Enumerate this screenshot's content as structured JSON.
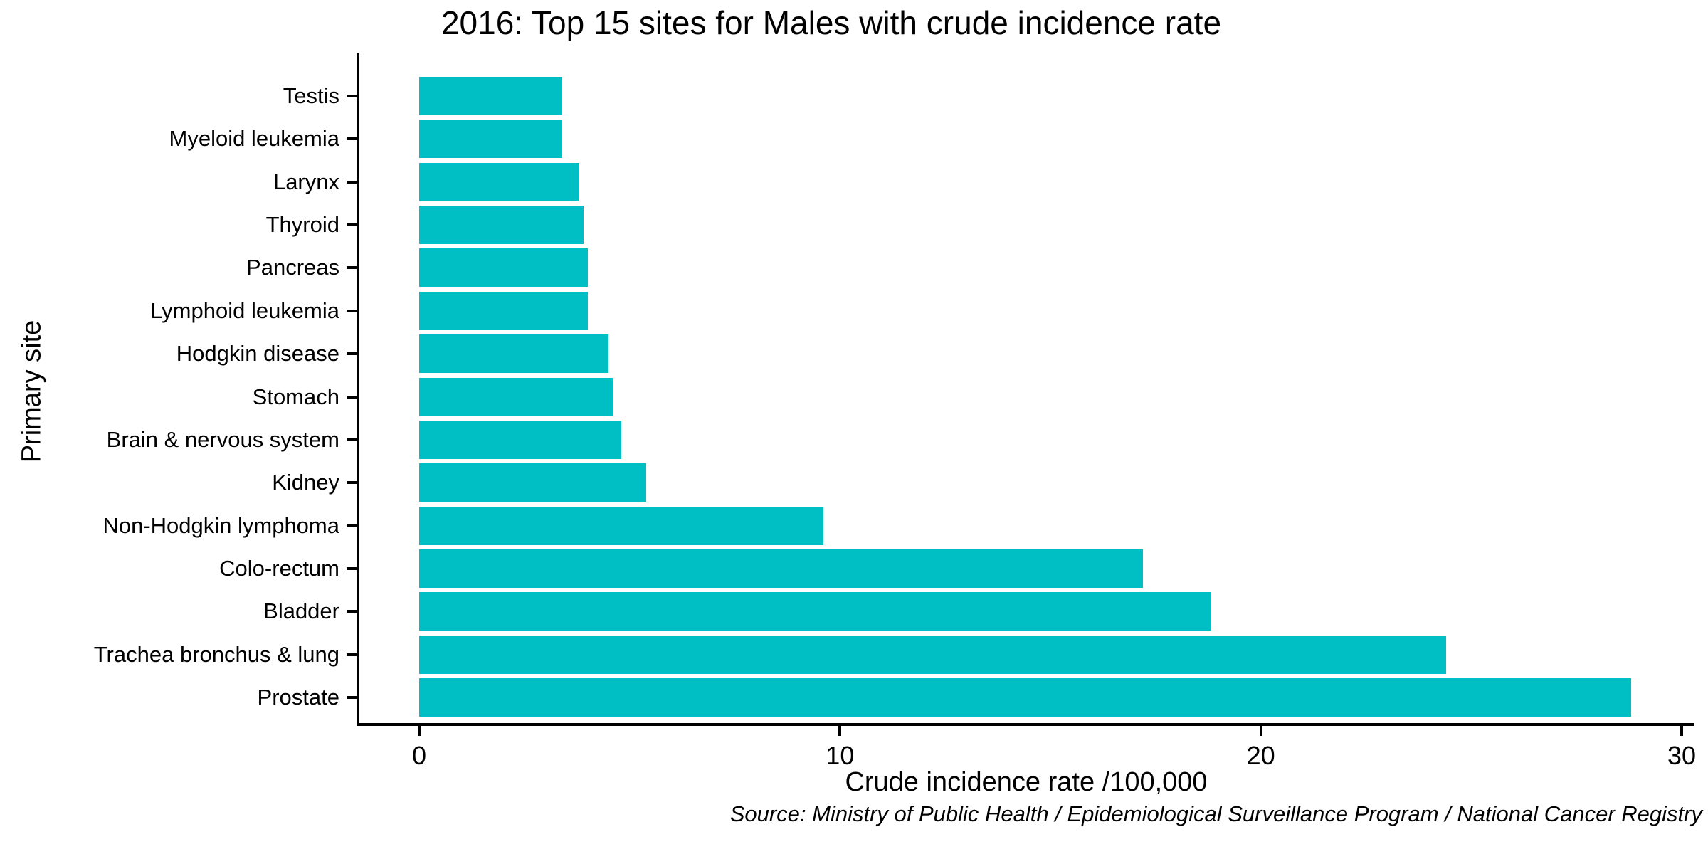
{
  "chart_data": {
    "type": "bar",
    "orientation": "horizontal",
    "title": "2016: Top 15 sites for Males with crude incidence rate",
    "xlabel": "Crude incidence rate /100,000",
    "ylabel": "Primary site",
    "categories": [
      "Testis",
      "Myeloid leukemia",
      "Larynx",
      "Thyroid",
      "Pancreas",
      "Lymphoid leukemia",
      "Hodgkin disease",
      "Stomach",
      "Brain & nervous system",
      "Kidney",
      "Non-Hodgkin lymphoma",
      "Colo-rectum",
      "Bladder",
      "Trachea bronchus & lung",
      "Prostate"
    ],
    "values": [
      3.4,
      3.4,
      3.8,
      3.9,
      4.0,
      4.0,
      4.5,
      4.6,
      4.8,
      5.4,
      9.6,
      17.2,
      18.8,
      24.4,
      28.8
    ],
    "xlim": [
      0,
      30
    ],
    "xticks": [
      0,
      10,
      20,
      30
    ],
    "grid": false,
    "legend": "none",
    "bar_color": "#00BFC4",
    "axis_color": "#000000",
    "text_color": "#000000",
    "background_color": "#ffffff",
    "source": "Source: Ministry of Public Health / Epidemiological Surveillance Program / National Cancer Registry"
  }
}
